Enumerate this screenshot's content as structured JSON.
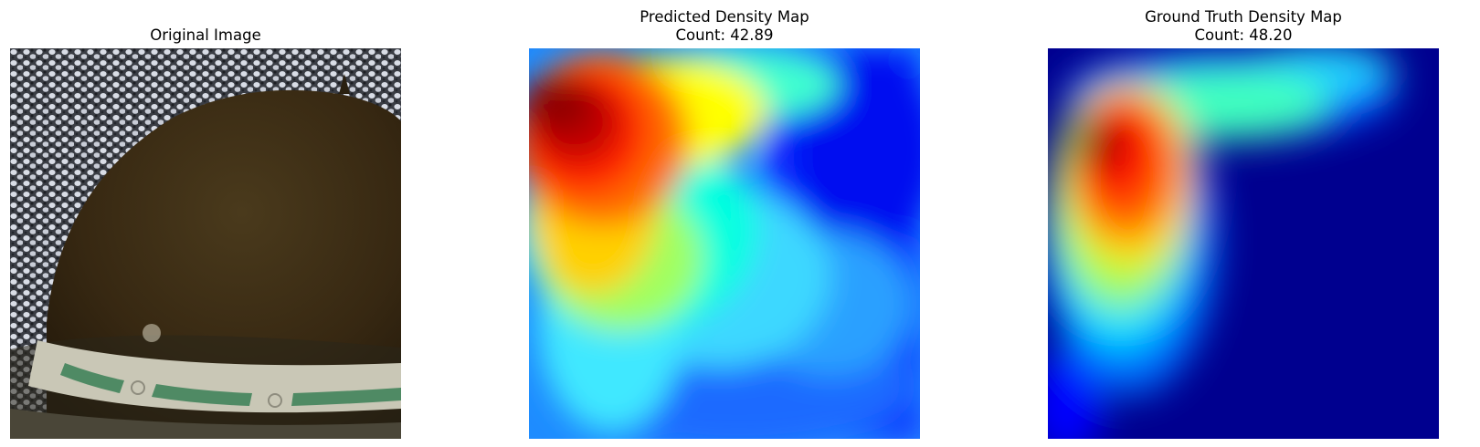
{
  "figure": {
    "panels": [
      {
        "title": "Original Image"
      },
      {
        "title": "Predicted Density Map",
        "count_label": "Count: 42.89",
        "colormap": "jet"
      },
      {
        "title": "Ground Truth Density Map",
        "count_label": "Count: 48.20",
        "colormap": "jet"
      }
    ]
  },
  "colors": {
    "dome": "#3a2b13",
    "dome_band": "#c9c7b6",
    "band_green": "#4f8a64",
    "crowd": "#d9dde6",
    "background": "#ffffff",
    "jet_dark_blue": "#00008f",
    "jet_blue": "#0000ff",
    "jet_cyan": "#00ffff",
    "jet_yellow": "#ffff00",
    "jet_red": "#ff0000",
    "jet_dark_red": "#800000"
  }
}
